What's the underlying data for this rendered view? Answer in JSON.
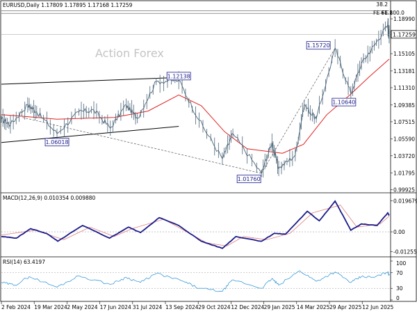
{
  "chart_data": {
    "type": "line",
    "title": "EURUSD,Daily  1.17809 1.17895 1.17168 1.17259",
    "watermark": "Action Forex",
    "x_axis": {
      "tick_labels": [
        "2 Feb 2024",
        "19 Mar 2024",
        "2 May 2024",
        "17 Jun 2024",
        "31 Jul 2024",
        "13 Sep 2024",
        "29 Oct 2024",
        "12 Dec 2024",
        "29 Jan 2025",
        "14 Mar 2025",
        "29 Apr 2025",
        "12 Jun 2025"
      ],
      "range": [
        "2024-02-02",
        "2025-07-02"
      ]
    },
    "price_panel": {
      "y_tick_labels": [
        "1.18990",
        "1.17259",
        "1.15105",
        "1.13181",
        "1.11310",
        "1.09385",
        "1.07515",
        "1.05590",
        "1.03720",
        "1.01795",
        "0.99925"
      ],
      "ylim": [
        0.9975,
        1.2
      ],
      "last_price": 1.17259,
      "last_price_label": "1.17259",
      "fib_labels": [
        "38.2",
        "FE 61.8",
        "FE 100.0"
      ],
      "annotations": [
        {
          "label": "1.06018",
          "value": 1.06018,
          "date": "2024-04-16"
        },
        {
          "label": "1.12138",
          "value": 1.12138,
          "date": "2024-09-25"
        },
        {
          "label": "1.01760",
          "value": 1.0176,
          "date": "2025-01-13"
        },
        {
          "label": "1.15720",
          "value": 1.1572,
          "date": "2025-04-21"
        },
        {
          "label": "1.10640",
          "value": 1.1064,
          "date": "2025-05-12"
        }
      ],
      "price_path": [
        {
          "date": "2024-02-02",
          "value": 1.078
        },
        {
          "date": "2024-02-14",
          "value": 1.072
        },
        {
          "date": "2024-03-08",
          "value": 1.094
        },
        {
          "date": "2024-03-20",
          "value": 1.086
        },
        {
          "date": "2024-04-16",
          "value": 1.062
        },
        {
          "date": "2024-05-15",
          "value": 1.086
        },
        {
          "date": "2024-06-04",
          "value": 1.088
        },
        {
          "date": "2024-06-26",
          "value": 1.068
        },
        {
          "date": "2024-07-17",
          "value": 1.094
        },
        {
          "date": "2024-08-01",
          "value": 1.079
        },
        {
          "date": "2024-08-26",
          "value": 1.12
        },
        {
          "date": "2024-09-25",
          "value": 1.1214
        },
        {
          "date": "2024-10-22",
          "value": 1.077
        },
        {
          "date": "2024-11-22",
          "value": 1.034
        },
        {
          "date": "2024-12-06",
          "value": 1.062
        },
        {
          "date": "2025-01-13",
          "value": 1.0176
        },
        {
          "date": "2025-01-27",
          "value": 1.052
        },
        {
          "date": "2025-02-05",
          "value": 1.023
        },
        {
          "date": "2025-02-27",
          "value": 1.038
        },
        {
          "date": "2025-03-11",
          "value": 1.094
        },
        {
          "date": "2025-03-27",
          "value": 1.078
        },
        {
          "date": "2025-04-21",
          "value": 1.1572
        },
        {
          "date": "2025-05-12",
          "value": 1.1064
        },
        {
          "date": "2025-05-26",
          "value": 1.14
        },
        {
          "date": "2025-06-12",
          "value": 1.16
        },
        {
          "date": "2025-06-30",
          "value": 1.183
        },
        {
          "date": "2025-07-02",
          "value": 1.1726
        }
      ],
      "ma_path": [
        {
          "date": "2024-02-02",
          "value": 1.083
        },
        {
          "date": "2024-03-05",
          "value": 1.081
        },
        {
          "date": "2024-04-16",
          "value": 1.078
        },
        {
          "date": "2024-05-20",
          "value": 1.079
        },
        {
          "date": "2024-07-01",
          "value": 1.08
        },
        {
          "date": "2024-08-15",
          "value": 1.087
        },
        {
          "date": "2024-09-25",
          "value": 1.105
        },
        {
          "date": "2024-10-25",
          "value": 1.093
        },
        {
          "date": "2024-11-25",
          "value": 1.064
        },
        {
          "date": "2024-12-25",
          "value": 1.045
        },
        {
          "date": "2025-02-10",
          "value": 1.04
        },
        {
          "date": "2025-03-10",
          "value": 1.05
        },
        {
          "date": "2025-04-10",
          "value": 1.083
        },
        {
          "date": "2025-05-12",
          "value": 1.106
        },
        {
          "date": "2025-06-05",
          "value": 1.125
        },
        {
          "date": "2025-07-02",
          "value": 1.145
        }
      ],
      "trendlines": [
        {
          "from": {
            "date": "2024-02-02",
            "value": 1.117
          },
          "to": {
            "date": "2024-10-10",
            "value": 1.125
          },
          "style": "solid"
        },
        {
          "from": {
            "date": "2024-02-02",
            "value": 1.052
          },
          "to": {
            "date": "2024-09-25",
            "value": 1.07
          },
          "style": "solid"
        },
        {
          "from": {
            "date": "2024-03-01",
            "value": 1.08
          },
          "to": {
            "date": "2025-01-13",
            "value": 1.0176
          },
          "style": "dashed"
        },
        {
          "from": {
            "date": "2025-01-13",
            "value": 1.0176
          },
          "to": {
            "date": "2025-04-21",
            "value": 1.1572
          },
          "style": "dashed"
        }
      ],
      "fib_levels": [
        1.199,
        1.196
      ]
    },
    "macd_panel": {
      "label": "MACD(12,26,9) 0.010354 0.009880",
      "y_tick_labels": [
        "0.019679",
        "0.00",
        "-0.012552"
      ],
      "ylim": [
        -0.015,
        0.023
      ],
      "macd_path": [
        {
          "date": "2024-02-02",
          "value": -0.003
        },
        {
          "date": "2024-02-22",
          "value": -0.004
        },
        {
          "date": "2024-03-12",
          "value": 0.002
        },
        {
          "date": "2024-04-02",
          "value": -0.001
        },
        {
          "date": "2024-04-17",
          "value": -0.006
        },
        {
          "date": "2024-05-20",
          "value": 0.004
        },
        {
          "date": "2024-06-25",
          "value": -0.004
        },
        {
          "date": "2024-07-20",
          "value": 0.003
        },
        {
          "date": "2024-08-05",
          "value": -0.0005
        },
        {
          "date": "2024-08-30",
          "value": 0.009
        },
        {
          "date": "2024-09-25",
          "value": 0.004
        },
        {
          "date": "2024-10-25",
          "value": -0.006
        },
        {
          "date": "2024-11-22",
          "value": -0.0105
        },
        {
          "date": "2024-12-10",
          "value": -0.003
        },
        {
          "date": "2025-01-13",
          "value": -0.006
        },
        {
          "date": "2025-01-30",
          "value": -0.001
        },
        {
          "date": "2025-02-14",
          "value": -0.0015
        },
        {
          "date": "2025-03-15",
          "value": 0.013
        },
        {
          "date": "2025-03-31",
          "value": 0.007
        },
        {
          "date": "2025-04-21",
          "value": 0.0195
        },
        {
          "date": "2025-05-12",
          "value": 0.001
        },
        {
          "date": "2025-05-26",
          "value": 0.005
        },
        {
          "date": "2025-06-16",
          "value": 0.004
        },
        {
          "date": "2025-06-30",
          "value": 0.012
        },
        {
          "date": "2025-07-02",
          "value": 0.0104
        }
      ],
      "signal_path": [
        {
          "date": "2024-02-02",
          "value": -0.002
        },
        {
          "date": "2024-03-18",
          "value": 0.001
        },
        {
          "date": "2024-04-25",
          "value": -0.005
        },
        {
          "date": "2024-05-30",
          "value": 0.003
        },
        {
          "date": "2024-07-01",
          "value": -0.003
        },
        {
          "date": "2024-07-25",
          "value": 0.002
        },
        {
          "date": "2024-09-05",
          "value": 0.008
        },
        {
          "date": "2024-11-01",
          "value": -0.007
        },
        {
          "date": "2024-11-28",
          "value": -0.009
        },
        {
          "date": "2024-12-20",
          "value": -0.003
        },
        {
          "date": "2025-01-20",
          "value": -0.005
        },
        {
          "date": "2025-02-20",
          "value": -0.001
        },
        {
          "date": "2025-03-22",
          "value": 0.012
        },
        {
          "date": "2025-04-28",
          "value": 0.017
        },
        {
          "date": "2025-05-20",
          "value": 0.003
        },
        {
          "date": "2025-06-20",
          "value": 0.005
        },
        {
          "date": "2025-07-02",
          "value": 0.0099
        }
      ]
    },
    "rsi_panel": {
      "label": "RSI(14) 63.4197",
      "y_tick_labels": [
        "100",
        "70",
        "30",
        "0"
      ],
      "ylim": [
        0,
        100
      ],
      "levels": [
        70,
        30
      ],
      "rsi_path": [
        {
          "date": "2024-02-02",
          "value": 45
        },
        {
          "date": "2024-02-20",
          "value": 38
        },
        {
          "date": "2024-03-10",
          "value": 60
        },
        {
          "date": "2024-04-16",
          "value": 33
        },
        {
          "date": "2024-05-15",
          "value": 62
        },
        {
          "date": "2024-06-26",
          "value": 40
        },
        {
          "date": "2024-07-17",
          "value": 58
        },
        {
          "date": "2024-08-05",
          "value": 45
        },
        {
          "date": "2024-08-26",
          "value": 68
        },
        {
          "date": "2024-10-01",
          "value": 48
        },
        {
          "date": "2024-10-22",
          "value": 30
        },
        {
          "date": "2024-11-22",
          "value": 22
        },
        {
          "date": "2024-12-06",
          "value": 52
        },
        {
          "date": "2025-01-13",
          "value": 30
        },
        {
          "date": "2025-01-27",
          "value": 55
        },
        {
          "date": "2025-02-05",
          "value": 38
        },
        {
          "date": "2025-03-05",
          "value": 75
        },
        {
          "date": "2025-03-27",
          "value": 48
        },
        {
          "date": "2025-04-21",
          "value": 72
        },
        {
          "date": "2025-05-12",
          "value": 45
        },
        {
          "date": "2025-05-26",
          "value": 60
        },
        {
          "date": "2025-06-12",
          "value": 58
        },
        {
          "date": "2025-06-30",
          "value": 72
        },
        {
          "date": "2025-07-02",
          "value": 63.4
        }
      ]
    },
    "colors": {
      "price": "#4b6478",
      "ma": "#e02020",
      "macd": "#1a1a8a",
      "signal": "#e08080",
      "rsi": "#3a9ad8",
      "annotation": "#1a1a8a",
      "watermark": "#c4c4c4"
    }
  }
}
